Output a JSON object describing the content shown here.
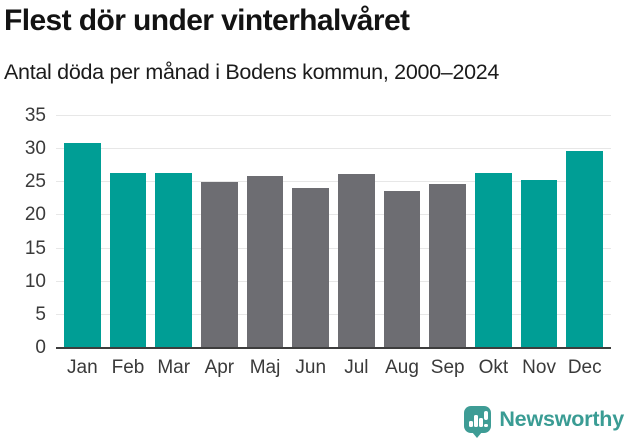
{
  "chart_data": {
    "type": "bar",
    "title": "Flest dör under vinterhalvåret",
    "subtitle": "Antal döda per månad i Bodens kommun, 2000–2024",
    "categories": [
      "Jan",
      "Feb",
      "Mar",
      "Apr",
      "Maj",
      "Jun",
      "Jul",
      "Aug",
      "Sep",
      "Okt",
      "Nov",
      "Dec"
    ],
    "values": [
      31.0,
      26.4,
      26.4,
      25.0,
      26.0,
      24.2,
      26.2,
      23.7,
      24.8,
      26.4,
      25.4,
      29.7
    ],
    "bar_color_keys": [
      "highlight",
      "highlight",
      "highlight",
      "neutral",
      "neutral",
      "neutral",
      "neutral",
      "neutral",
      "neutral",
      "highlight",
      "highlight",
      "highlight"
    ],
    "colors": {
      "highlight": "#009e95",
      "neutral": "#6d6d72",
      "gridline": "#e7e7e7",
      "axis": "#3d3d3d"
    },
    "xlabel": "",
    "ylabel": "",
    "ylim": [
      0,
      35
    ],
    "yticks": [
      0,
      5,
      10,
      15,
      20,
      25,
      30,
      35
    ],
    "grid": true,
    "legend_position": "none"
  },
  "footer": {
    "brand": "Newsworthy",
    "logo_icon": "speech-bubble-bar-chart-exclamation",
    "logo_color": "#3e9c95"
  }
}
